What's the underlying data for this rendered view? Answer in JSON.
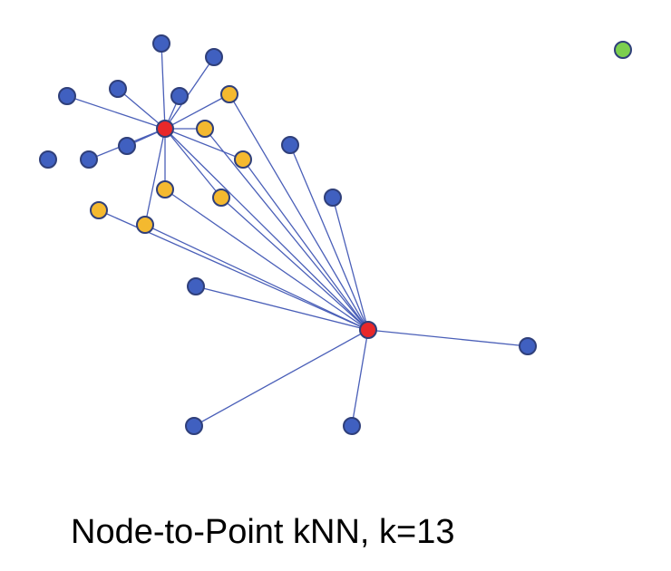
{
  "caption": "Node-to-Point kNN, k=13",
  "colors": {
    "neighbor": "#f4b92f",
    "other": "#4060c0",
    "query": "#e8282a",
    "isolated": "#7ccf4f",
    "edge": "#4a5fb8"
  },
  "nodes": [
    {
      "id": "b1",
      "kind": "other"
    },
    {
      "id": "b2",
      "kind": "other"
    },
    {
      "id": "b3",
      "kind": "other"
    },
    {
      "id": "b4",
      "kind": "other"
    },
    {
      "id": "b5",
      "kind": "other"
    },
    {
      "id": "b6",
      "kind": "other"
    },
    {
      "id": "b7",
      "kind": "other"
    },
    {
      "id": "b8",
      "kind": "other"
    },
    {
      "id": "b9",
      "kind": "other"
    },
    {
      "id": "b10",
      "kind": "other"
    },
    {
      "id": "b11",
      "kind": "other"
    },
    {
      "id": "b12",
      "kind": "other"
    },
    {
      "id": "b13",
      "kind": "other"
    },
    {
      "id": "b14",
      "kind": "other"
    },
    {
      "id": "y1",
      "kind": "neighbor"
    },
    {
      "id": "y2",
      "kind": "neighbor"
    },
    {
      "id": "y3",
      "kind": "neighbor"
    },
    {
      "id": "y4",
      "kind": "neighbor"
    },
    {
      "id": "y5",
      "kind": "neighbor"
    },
    {
      "id": "y6",
      "kind": "neighbor"
    },
    {
      "id": "y7",
      "kind": "neighbor"
    },
    {
      "id": "r1",
      "kind": "query"
    },
    {
      "id": "r2",
      "kind": "query"
    },
    {
      "id": "g1",
      "kind": "isolated"
    }
  ],
  "edges": [
    [
      "r1",
      "b1"
    ],
    [
      "r1",
      "b2"
    ],
    [
      "r1",
      "b4"
    ],
    [
      "r1",
      "b5"
    ],
    [
      "r1",
      "b3"
    ],
    [
      "r1",
      "b7"
    ],
    [
      "r1",
      "b8"
    ],
    [
      "r1",
      "y1"
    ],
    [
      "r1",
      "y2"
    ],
    [
      "r1",
      "y3"
    ],
    [
      "r1",
      "y4"
    ],
    [
      "r1",
      "y5"
    ],
    [
      "r1",
      "y7"
    ],
    [
      "r2",
      "r1"
    ],
    [
      "r2",
      "y1"
    ],
    [
      "r2",
      "y2"
    ],
    [
      "r2",
      "y3"
    ],
    [
      "r2",
      "y4"
    ],
    [
      "r2",
      "y5"
    ],
    [
      "r2",
      "y6"
    ],
    [
      "r2",
      "y7"
    ],
    [
      "r2",
      "b9"
    ],
    [
      "r2",
      "b10"
    ],
    [
      "r2",
      "b11"
    ],
    [
      "r2",
      "b12"
    ],
    [
      "r2",
      "b13"
    ],
    [
      "r2",
      "b14"
    ]
  ]
}
